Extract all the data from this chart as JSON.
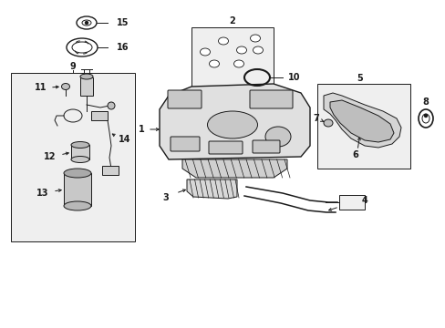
{
  "background_color": "#ffffff",
  "line_color": "#1a1a1a",
  "fig_width": 4.89,
  "fig_height": 3.6,
  "dpi": 100,
  "label_fs": 7.0,
  "lw": 0.7
}
